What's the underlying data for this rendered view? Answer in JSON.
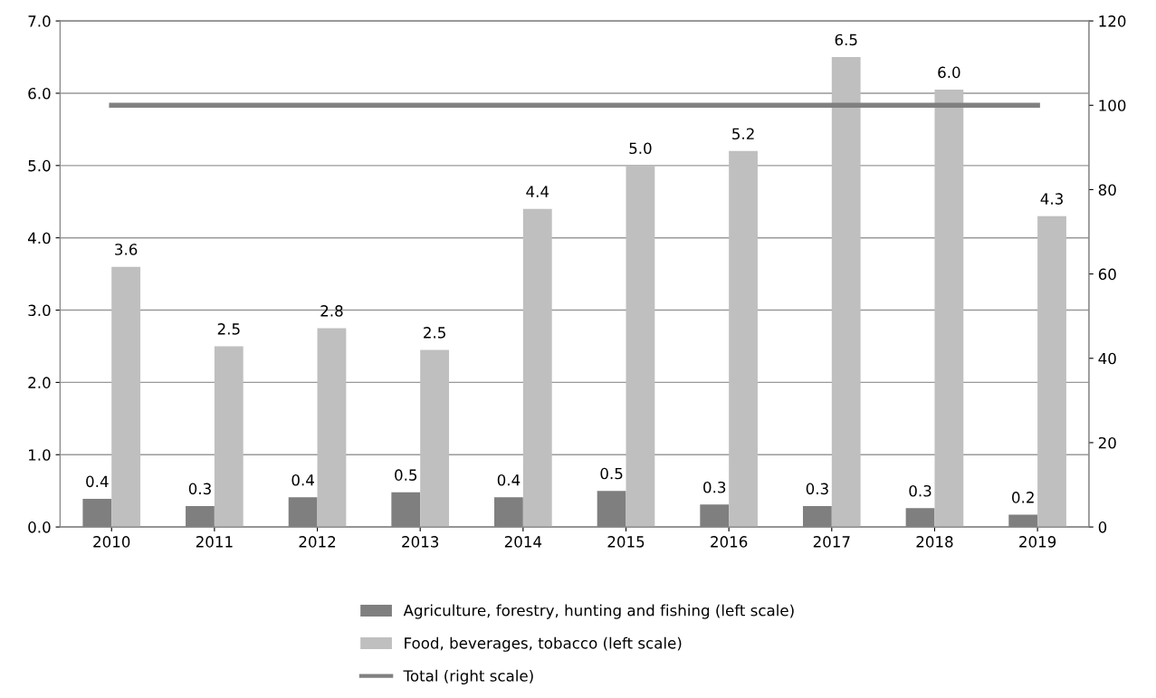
{
  "chart_data": {
    "type": "bar",
    "categories": [
      "2010",
      "2011",
      "2012",
      "2013",
      "2014",
      "2015",
      "2016",
      "2017",
      "2018",
      "2019"
    ],
    "series": [
      {
        "name": "Agriculture, forestry, hunting and fishing (left scale)",
        "color": "#7f7f7f",
        "values": [
          0.39,
          0.29,
          0.41,
          0.48,
          0.41,
          0.5,
          0.31,
          0.29,
          0.26,
          0.17
        ],
        "value_labels": [
          "0.4",
          "0.3",
          "0.4",
          "0.5",
          "0.4",
          "0.5",
          "0.3",
          "0.3",
          "0.3",
          "0.2"
        ]
      },
      {
        "name": "Food, beverages, tobacco (left scale)",
        "color": "#bfbfbf",
        "values": [
          3.6,
          2.5,
          2.75,
          2.45,
          4.4,
          5.0,
          5.2,
          6.5,
          6.05,
          4.3
        ],
        "value_labels": [
          "3.6",
          "2.5",
          "2.8",
          "2.5",
          "4.4",
          "5.0",
          "5.2",
          "6.5",
          "6.0",
          "4.3"
        ]
      },
      {
        "name": "Total (right scale)",
        "type": "line",
        "axis": "y2",
        "color": "#808080",
        "values": [
          100,
          100,
          100,
          100,
          100,
          100,
          100,
          100,
          100,
          100
        ]
      }
    ],
    "ylim": [
      0,
      7
    ],
    "yticks": [
      {
        "value": 0,
        "label": "0.0"
      },
      {
        "value": 1,
        "label": "1.0"
      },
      {
        "value": 2,
        "label": "2.0"
      },
      {
        "value": 3,
        "label": "3.0"
      },
      {
        "value": 4,
        "label": "4.0"
      },
      {
        "value": 5,
        "label": "5.0"
      },
      {
        "value": 6,
        "label": "6.0"
      },
      {
        "value": 7,
        "label": "7.0"
      }
    ],
    "y2lim": [
      0,
      120
    ],
    "y2ticks": [
      0,
      20,
      40,
      60,
      80,
      100,
      120
    ],
    "grid": "y",
    "legend": "bottom",
    "marker": "none",
    "line_style": "solid"
  }
}
